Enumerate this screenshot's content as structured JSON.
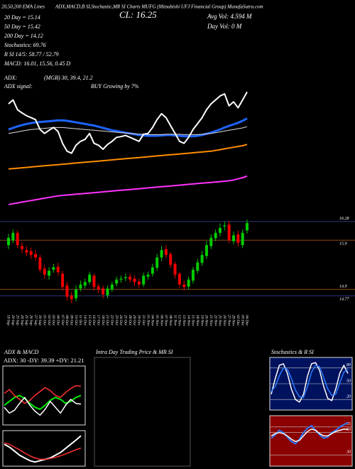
{
  "chart_data": [
    {
      "type": "candlestick",
      "header_left": "20,50,200 EMA Lines",
      "title": "ADX,MACD,B SI,Stochastic,MR SI Charts MUFG (Mitsubishi UFJ Financial Group) MunafaSutra.com",
      "close_label": "CL: 16.25",
      "avg_vol": "Avg Vol: 4.594 M",
      "day_vol": "Day Vol: 0 M",
      "stats": [
        "20 Day = 15.14",
        "50 Day = 15.42",
        "200 Day = 14.12",
        "Stochastics: 69.76",
        "R SI 14/5: 58.77 / 52.79",
        "MACD: 16.01, 15.56, 0.45 D"
      ],
      "adx_lines": [
        "ADX:",
        "(MGB) 30, 39.4, 21.2",
        "ADX  signal:",
        "BUY Growing by 7%"
      ],
      "categories": [
        "19 Sep",
        "20 Sep",
        "23 Sep",
        "24 Sep",
        "25 Sep",
        "26 Sep",
        "27 Sep",
        "30 Sep",
        "01 Oct",
        "02 Oct",
        "03 Oct",
        "04 Oct",
        "07 Oct",
        "08 Oct",
        "09 Oct",
        "10 Oct",
        "11 Oct",
        "14 Oct",
        "15 Oct",
        "16 Oct",
        "17 Oct",
        "18 Oct",
        "21 Oct",
        "22 Oct",
        "23 Oct",
        "24 Oct",
        "25 Oct",
        "28 Oct",
        "29 Oct",
        "30 Oct",
        "31 Oct",
        "01 Nov",
        "04 Nov",
        "05 Nov",
        "06 Nov",
        "07 Nov",
        "08 Nov",
        "11 Nov",
        "12 Nov",
        "13 Nov",
        "14 Nov",
        "15 Nov",
        "18 Nov",
        "19 Nov",
        "20 Nov",
        "21 Nov",
        "22 Nov",
        "25 Nov",
        "26 Nov",
        "27 Nov",
        "29 Nov",
        "02 Dec",
        "03 Dec",
        "04 Dec"
      ],
      "open": [
        15.8,
        15.9,
        16.05,
        15.78,
        15.7,
        15.68,
        15.62,
        15.55,
        15.32,
        15.18,
        15.3,
        15.36,
        15.22,
        14.98,
        14.78,
        14.72,
        14.92,
        14.98,
        15.05,
        15.18,
        14.96,
        14.92,
        14.78,
        14.9,
        15.02,
        15.1,
        15.13,
        15.16,
        15.12,
        15.06,
        15.0,
        15.16,
        15.22,
        15.34,
        15.55,
        15.72,
        15.62,
        15.42,
        15.22,
        15.0,
        14.96,
        15.08,
        15.28,
        15.44,
        15.58,
        15.78,
        15.94,
        16.05,
        16.18,
        16.22,
        15.88,
        16.02,
        15.8,
        16.1
      ],
      "high": [
        16.03,
        16.12,
        16.1,
        15.86,
        15.78,
        15.75,
        15.7,
        15.6,
        15.4,
        15.35,
        15.42,
        15.44,
        15.28,
        15.05,
        14.85,
        14.98,
        15.08,
        15.12,
        15.26,
        15.22,
        15.02,
        14.98,
        14.98,
        15.06,
        15.16,
        15.18,
        15.22,
        15.22,
        15.18,
        15.12,
        15.24,
        15.26,
        15.42,
        15.62,
        15.78,
        15.8,
        15.66,
        15.46,
        15.26,
        15.08,
        15.16,
        15.36,
        15.52,
        15.68,
        15.88,
        16.02,
        16.12,
        16.24,
        16.28,
        16.3,
        16.08,
        16.1,
        16.12,
        16.32
      ],
      "low": [
        15.72,
        15.84,
        15.74,
        15.64,
        15.58,
        15.52,
        15.48,
        15.24,
        15.12,
        15.1,
        15.24,
        15.18,
        14.88,
        14.68,
        14.62,
        14.66,
        14.86,
        14.92,
        15.0,
        14.88,
        14.82,
        14.72,
        14.72,
        14.85,
        14.96,
        15.04,
        15.07,
        15.04,
        14.98,
        14.94,
        14.95,
        15.1,
        15.16,
        15.28,
        15.48,
        15.54,
        15.34,
        15.12,
        14.94,
        14.88,
        14.9,
        15.02,
        15.22,
        15.38,
        15.52,
        15.72,
        15.88,
        15.98,
        16.1,
        15.84,
        15.82,
        15.78,
        15.74,
        16.04
      ],
      "close": [
        15.95,
        16.05,
        15.8,
        15.72,
        15.65,
        15.6,
        15.55,
        15.3,
        15.2,
        15.28,
        15.35,
        15.25,
        14.95,
        14.75,
        14.7,
        14.9,
        15.0,
        15.05,
        15.2,
        14.95,
        14.9,
        14.8,
        14.92,
        15.0,
        15.1,
        15.12,
        15.15,
        15.1,
        15.05,
        15.0,
        15.18,
        15.2,
        15.35,
        15.55,
        15.7,
        15.6,
        15.4,
        15.2,
        15.0,
        14.95,
        15.1,
        15.3,
        15.45,
        15.6,
        15.8,
        15.95,
        16.05,
        16.15,
        16.2,
        15.9,
        16.0,
        15.85,
        16.05,
        16.25
      ],
      "up_color": "#00cc00",
      "down_color": "#ee0000",
      "ylim": [
        14.5,
        16.45
      ],
      "yticks": [
        16.28,
        15.9,
        14.9,
        14.77
      ]
    },
    {
      "type": "line",
      "close_color": "#ffffff",
      "series": [
        {
          "color": "#1e64ff",
          "values": [
            15.3,
            15.34,
            15.38,
            15.41,
            15.44,
            15.46,
            15.48,
            15.49,
            15.5,
            15.51,
            15.52,
            15.53,
            15.53,
            15.52,
            15.5,
            15.48,
            15.46,
            15.44,
            15.42,
            15.4,
            15.37,
            15.34,
            15.31,
            15.28,
            15.26,
            15.24,
            15.22,
            15.2,
            15.18,
            15.16,
            15.15,
            15.14,
            15.14,
            15.14,
            15.15,
            15.16,
            15.16,
            15.15,
            15.14,
            15.13,
            15.13,
            15.13,
            15.14,
            15.16,
            15.19,
            15.22,
            15.26,
            15.3,
            15.35,
            15.39,
            15.43,
            15.47,
            15.52,
            15.58
          ]
        },
        {
          "color": "#dddddd",
          "values": [
            15.2,
            15.22,
            15.24,
            15.26,
            15.28,
            15.3,
            15.31,
            15.32,
            15.33,
            15.34,
            15.35,
            15.35,
            15.35,
            15.34,
            15.33,
            15.32,
            15.31,
            15.3,
            15.29,
            15.28,
            15.27,
            15.26,
            15.25,
            15.24,
            15.23,
            15.22,
            15.21,
            15.2,
            15.19,
            15.18,
            15.18,
            15.17,
            15.17,
            15.17,
            15.17,
            15.18,
            15.18,
            15.18,
            15.18,
            15.17,
            15.17,
            15.17,
            15.17,
            15.18,
            15.19,
            15.2,
            15.22,
            15.24,
            15.26,
            15.28,
            15.3,
            15.32,
            15.34,
            15.37
          ]
        },
        {
          "color": "#ff8c00",
          "values": [
            14.3,
            14.31,
            14.32,
            14.33,
            14.34,
            14.35,
            14.36,
            14.37,
            14.38,
            14.39,
            14.4,
            14.41,
            14.42,
            14.43,
            14.44,
            14.45,
            14.46,
            14.47,
            14.48,
            14.49,
            14.5,
            14.51,
            14.52,
            14.53,
            14.54,
            14.55,
            14.56,
            14.57,
            14.58,
            14.59,
            14.6,
            14.61,
            14.62,
            14.63,
            14.64,
            14.65,
            14.66,
            14.67,
            14.68,
            14.69,
            14.7,
            14.71,
            14.72,
            14.73,
            14.74,
            14.75,
            14.77,
            14.79,
            14.81,
            14.83,
            14.85,
            14.87,
            14.89,
            14.92
          ]
        },
        {
          "color": "#ff33ff",
          "values": [
            13.4,
            13.42,
            13.44,
            13.46,
            13.48,
            13.5,
            13.52,
            13.54,
            13.56,
            13.58,
            13.6,
            13.62,
            13.63,
            13.64,
            13.65,
            13.66,
            13.67,
            13.68,
            13.69,
            13.7,
            13.71,
            13.72,
            13.73,
            13.74,
            13.75,
            13.76,
            13.77,
            13.78,
            13.79,
            13.8,
            13.81,
            13.82,
            13.83,
            13.84,
            13.85,
            13.86,
            13.87,
            13.88,
            13.89,
            13.9,
            13.91,
            13.92,
            13.93,
            13.94,
            13.95,
            13.96,
            13.97,
            13.98,
            13.99,
            14.0,
            14.02,
            14.05,
            14.08,
            14.12
          ]
        }
      ],
      "ylim": [
        13.0,
        16.6
      ]
    },
    {
      "type": "line",
      "title": "ADX  & MACD",
      "subtitle": "ADX: 30  -DY: 39.39  +DY: 21.21",
      "series": [
        {
          "color": "#00ee00",
          "values": [
            20,
            24,
            28,
            30,
            27,
            22,
            18,
            16,
            20,
            25,
            28,
            26,
            22,
            24,
            28,
            30
          ]
        },
        {
          "color": "#ff3030",
          "values": [
            32,
            36,
            30,
            26,
            22,
            25,
            30,
            34,
            38,
            35,
            30,
            28,
            33,
            37,
            40,
            39.39
          ]
        },
        {
          "color": "#ffffff",
          "values": [
            18,
            12,
            15,
            22,
            28,
            20,
            14,
            10,
            16,
            24,
            18,
            12,
            20,
            26,
            22,
            21.21
          ]
        }
      ],
      "ylim": [
        0,
        60
      ]
    },
    {
      "type": "line",
      "series": [
        {
          "color": "#ffffff",
          "values": [
            15.7,
            15.6,
            15.45,
            15.3,
            15.2,
            15.1,
            15.05,
            15.1,
            15.15,
            15.2,
            15.3,
            15.4,
            15.55,
            15.7,
            15.85,
            16.01
          ]
        },
        {
          "color": "#ff3030",
          "values": [
            15.75,
            15.7,
            15.6,
            15.5,
            15.38,
            15.28,
            15.2,
            15.15,
            15.15,
            15.18,
            15.22,
            15.28,
            15.35,
            15.42,
            15.5,
            15.56
          ]
        }
      ],
      "ylim": [
        14.9,
        16.2
      ]
    },
    {
      "type": "line",
      "title": "Intra Day Trading Price  & MR         SI"
    },
    {
      "type": "line",
      "title": "Stochastics & R                SI",
      "background": "#00125e",
      "series": [
        {
          "color": "#ffffff",
          "values": [
            30,
            60,
            85,
            88,
            70,
            40,
            20,
            15,
            30,
            65,
            88,
            90,
            75,
            45,
            22,
            18,
            40,
            70,
            85,
            69.76
          ]
        },
        {
          "color": "#2a7bff",
          "values": [
            35,
            45,
            65,
            80,
            78,
            60,
            38,
            25,
            24,
            45,
            72,
            85,
            82,
            62,
            40,
            28,
            30,
            52,
            72,
            78
          ]
        }
      ],
      "ylim": [
        0,
        100
      ],
      "yticks": [
        80,
        50,
        20
      ]
    },
    {
      "type": "line",
      "background": "#8b0000",
      "series": [
        {
          "color": "#2a7bff",
          "values": [
            45,
            48,
            52,
            50,
            46,
            42,
            40,
            44,
            50,
            54,
            56,
            52,
            48,
            45,
            46,
            50,
            52,
            55,
            57,
            58.77
          ]
        },
        {
          "color": "#ffffff",
          "values": [
            47,
            49,
            50,
            49,
            47,
            44,
            42,
            43,
            47,
            51,
            53,
            52,
            49,
            47,
            47,
            49,
            51,
            52,
            53,
            52.79
          ]
        }
      ],
      "ylim": [
        20,
        65
      ],
      "yticks": [
        55,
        50,
        30
      ]
    }
  ]
}
